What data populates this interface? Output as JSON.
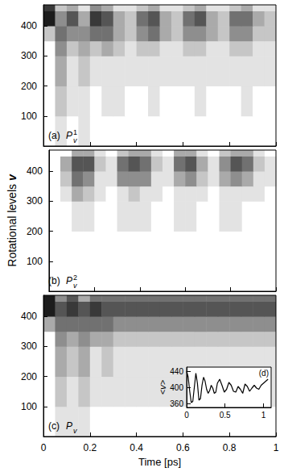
{
  "chart_data": [
    {
      "type": "heatmap",
      "label": "(a)",
      "quantity": "P",
      "subscript": "v",
      "superscript": "1",
      "xlim": [
        0,
        1
      ],
      "xticks": [
        0,
        0.2,
        0.4,
        0.6,
        0.8,
        1
      ],
      "ylim": [
        0,
        470
      ],
      "yticks": [
        100,
        200,
        300,
        400
      ],
      "tick_labels": "y",
      "color": "#000000",
      "zlim": [
        0,
        9
      ],
      "t_edges": [
        0,
        0.05,
        0.1,
        0.15,
        0.2,
        0.25,
        0.3,
        0.35,
        0.4,
        0.45,
        0.5,
        0.55,
        0.6,
        0.65,
        0.7,
        0.75,
        0.8,
        0.85,
        0.9,
        0.95,
        1
      ],
      "v_edges": [
        0,
        100,
        200,
        300,
        350,
        400,
        450,
        470
      ],
      "cells": [
        [
          0,
          1,
          0,
          1,
          0,
          0,
          0,
          0,
          0,
          0,
          0,
          0,
          0,
          0,
          0,
          0,
          0,
          0,
          0,
          0
        ],
        [
          0,
          2,
          1,
          1,
          0,
          1,
          1,
          0,
          0,
          1,
          0,
          0,
          0,
          1,
          0,
          0,
          0,
          1,
          0,
          0
        ],
        [
          0,
          3,
          1,
          2,
          1,
          1,
          1,
          1,
          1,
          1,
          1,
          1,
          1,
          1,
          1,
          1,
          1,
          1,
          1,
          1
        ],
        [
          0,
          4,
          2,
          3,
          2,
          3,
          2,
          1,
          2,
          2,
          1,
          1,
          2,
          2,
          1,
          1,
          2,
          2,
          1,
          1
        ],
        [
          2,
          5,
          4,
          4,
          5,
          5,
          3,
          2,
          4,
          5,
          3,
          2,
          4,
          4,
          3,
          2,
          4,
          4,
          2,
          2
        ],
        [
          8,
          4,
          6,
          3,
          7,
          6,
          3,
          2,
          5,
          6,
          3,
          2,
          5,
          6,
          3,
          2,
          5,
          5,
          3,
          2
        ],
        [
          7,
          2,
          3,
          1,
          4,
          3,
          1,
          1,
          2,
          3,
          1,
          1,
          2,
          3,
          1,
          1,
          2,
          3,
          1,
          1
        ]
      ]
    },
    {
      "type": "heatmap",
      "label": "(b)",
      "quantity": "P",
      "subscript": "v",
      "superscript": "2",
      "ylabel": "Rotational levels v",
      "xlim": [
        0,
        1
      ],
      "xticks": [
        0,
        0.2,
        0.4,
        0.6,
        0.8,
        1
      ],
      "ylim": [
        0,
        470
      ],
      "yticks": [
        100,
        200,
        300,
        400
      ],
      "tick_labels": "y",
      "color": "#000000",
      "zlim": [
        0,
        9
      ],
      "t_edges": [
        0,
        0.05,
        0.1,
        0.15,
        0.2,
        0.25,
        0.3,
        0.35,
        0.4,
        0.45,
        0.5,
        0.55,
        0.6,
        0.65,
        0.7,
        0.75,
        0.8,
        0.85,
        0.9,
        0.95,
        1
      ],
      "v_edges": [
        0,
        100,
        200,
        300,
        350,
        400,
        450,
        470
      ],
      "cells": [
        [
          0,
          0,
          0,
          0,
          0,
          0,
          0,
          0,
          0,
          0,
          0,
          0,
          0,
          0,
          0,
          0,
          0,
          0,
          0,
          0
        ],
        [
          0,
          0,
          0,
          0,
          0,
          0,
          0,
          0,
          0,
          0,
          0,
          0,
          0,
          0,
          0,
          0,
          0,
          0,
          0,
          0
        ],
        [
          0,
          0,
          1,
          1,
          0,
          0,
          1,
          1,
          1,
          0,
          0,
          1,
          1,
          0,
          0,
          1,
          1,
          0,
          0,
          0
        ],
        [
          0,
          1,
          3,
          2,
          1,
          0,
          1,
          2,
          1,
          1,
          0,
          1,
          1,
          1,
          0,
          1,
          1,
          1,
          1,
          0
        ],
        [
          0,
          2,
          5,
          4,
          1,
          1,
          4,
          4,
          4,
          1,
          1,
          3,
          4,
          2,
          1,
          3,
          4,
          3,
          1,
          1
        ],
        [
          0,
          3,
          6,
          6,
          2,
          1,
          5,
          6,
          5,
          2,
          1,
          5,
          6,
          3,
          1,
          4,
          6,
          5,
          2,
          1
        ],
        [
          0,
          0,
          3,
          3,
          1,
          0,
          2,
          3,
          3,
          1,
          0,
          3,
          3,
          1,
          0,
          2,
          3,
          3,
          1,
          0
        ]
      ]
    },
    {
      "type": "heatmap",
      "label": "(c)",
      "quantity": "P",
      "subscript": "v",
      "xlabel": "Time [ps]",
      "xlim": [
        0,
        1
      ],
      "xticks": [
        0,
        0.2,
        0.4,
        0.6,
        0.8,
        1
      ],
      "ylim": [
        0,
        470
      ],
      "yticks": [
        100,
        200,
        300,
        400
      ],
      "color": "#000000",
      "zlim": [
        0,
        9
      ],
      "t_edges": [
        0,
        0.05,
        0.1,
        0.15,
        0.2,
        0.25,
        0.3,
        0.35,
        0.4,
        0.45,
        0.5,
        0.55,
        0.6,
        0.65,
        0.7,
        0.75,
        0.8,
        0.85,
        0.9,
        0.95,
        1
      ],
      "v_edges": [
        0,
        100,
        200,
        300,
        350,
        400,
        450,
        470
      ],
      "cells": [
        [
          0,
          1,
          1,
          1,
          0,
          0,
          0,
          0,
          0,
          0,
          0,
          0,
          0,
          0,
          0,
          0,
          0,
          0,
          0,
          0
        ],
        [
          0,
          2,
          1,
          2,
          1,
          1,
          1,
          1,
          1,
          1,
          1,
          1,
          1,
          1,
          1,
          1,
          1,
          1,
          1,
          1
        ],
        [
          0,
          3,
          2,
          3,
          1,
          2,
          1,
          1,
          1,
          1,
          1,
          1,
          1,
          1,
          1,
          1,
          1,
          1,
          1,
          1
        ],
        [
          0,
          4,
          3,
          4,
          3,
          3,
          2,
          2,
          2,
          2,
          2,
          2,
          2,
          2,
          2,
          2,
          2,
          2,
          2,
          2
        ],
        [
          3,
          5,
          5,
          5,
          5,
          5,
          4,
          4,
          4,
          4,
          4,
          4,
          4,
          4,
          4,
          4,
          4,
          4,
          4,
          4
        ],
        [
          8,
          6,
          7,
          6,
          7,
          6,
          6,
          6,
          6,
          6,
          6,
          6,
          6,
          6,
          6,
          6,
          6,
          6,
          6,
          6
        ],
        [
          8,
          4,
          6,
          3,
          5,
          5,
          5,
          5,
          5,
          5,
          5,
          5,
          5,
          5,
          5,
          5,
          5,
          5,
          5,
          5
        ]
      ]
    },
    {
      "type": "line",
      "label": "(d)",
      "ylabel": "<v>",
      "xlim": [
        0,
        1.1
      ],
      "xticks": [
        0,
        0.5,
        1
      ],
      "ylim": [
        350,
        450
      ],
      "yticks": [
        360,
        400,
        440
      ],
      "color": "#000000",
      "x": [
        0,
        0.02,
        0.04,
        0.06,
        0.08,
        0.1,
        0.12,
        0.14,
        0.16,
        0.18,
        0.2,
        0.22,
        0.24,
        0.26,
        0.28,
        0.3,
        0.32,
        0.34,
        0.36,
        0.38,
        0.4,
        0.43,
        0.46,
        0.49,
        0.52,
        0.55,
        0.58,
        0.61,
        0.64,
        0.67,
        0.7,
        0.73,
        0.76,
        0.79,
        0.82,
        0.85,
        0.88,
        0.91,
        0.94,
        0.97,
        1,
        1.03,
        1.06
      ],
      "values": [
        440,
        425,
        390,
        362,
        365,
        400,
        435,
        410,
        368,
        372,
        405,
        425,
        415,
        395,
        385,
        392,
        405,
        398,
        385,
        388,
        410,
        420,
        405,
        388,
        395,
        412,
        405,
        390,
        388,
        402,
        395,
        385,
        408,
        402,
        390,
        398,
        405,
        398,
        395,
        405,
        410,
        415,
        420
      ]
    }
  ]
}
